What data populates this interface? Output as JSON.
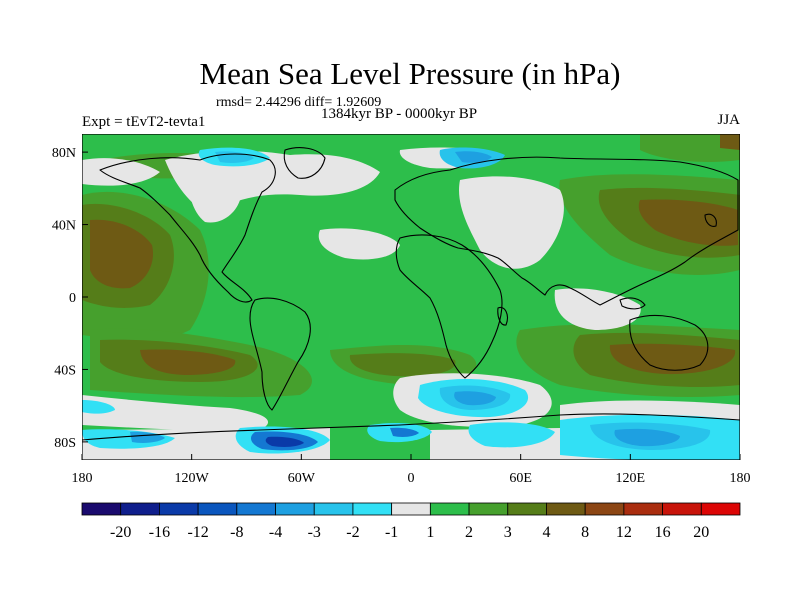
{
  "chart_data": {
    "type": "heatmap",
    "title": "Mean Sea Level Pressure (in hPa)",
    "stats_text": "rmsd= 2.44296 diff= 1.92609",
    "period": "1384kyr BP - 0000kyr BP",
    "experiment": "Expt = tEvT2-tevta1",
    "season": "JJA",
    "x_ticks": [
      "180",
      "120W",
      "60W",
      "0",
      "60E",
      "120E",
      "180"
    ],
    "x_tick_values": [
      -180,
      -120,
      -60,
      0,
      60,
      120,
      180
    ],
    "y_ticks": [
      "80N",
      "40N",
      "0",
      "40S",
      "80S"
    ],
    "y_tick_values": [
      80,
      40,
      0,
      -40,
      -80
    ],
    "xlim": [
      -180,
      180
    ],
    "ylim": [
      -90,
      90
    ],
    "colorbar": {
      "levels": [
        "-20",
        "-16",
        "-12",
        "-8",
        "-4",
        "-3",
        "-2",
        "-1",
        "1",
        "2",
        "3",
        "4",
        "8",
        "12",
        "16",
        "20"
      ],
      "colors": [
        "#1a0a6e",
        "#0f1e8c",
        "#0a3aa8",
        "#0a56be",
        "#1478d2",
        "#1ea0e1",
        "#28c3eb",
        "#32e0f5",
        "#e6e6e6",
        "#2dbe4b",
        "#46a02d",
        "#557d19",
        "#6e5a14",
        "#8c4614",
        "#aa2d0f",
        "#c8140a",
        "#dc0505"
      ]
    }
  }
}
